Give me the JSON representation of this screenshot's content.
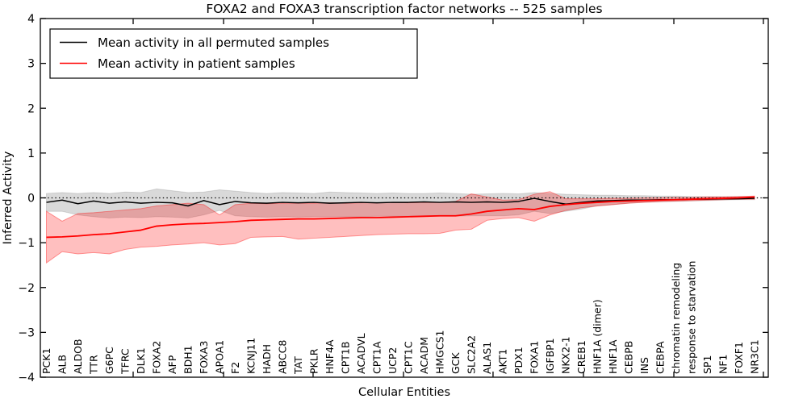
{
  "figure": {
    "title": "FOXA2 and FOXA3 transcription factor networks -- 525 samples",
    "xlabel": "Cellular Entities",
    "ylabel": "Inferred Activity"
  },
  "legend": {
    "items": [
      {
        "label": "Mean activity in all permuted samples",
        "color": "#000000"
      },
      {
        "label": "Mean activity in patient samples",
        "color": "#ff0000"
      }
    ],
    "position": "upper-left"
  },
  "chart_data": {
    "type": "line",
    "title": "FOXA2 and FOXA3 transcription factor networks -- 525 samples",
    "xlabel": "Cellular Entities",
    "ylabel": "Inferred Activity",
    "ylim": [
      -4,
      4
    ],
    "yticks": [
      4,
      3,
      2,
      1,
      0,
      -1,
      -2,
      -3,
      -4
    ],
    "zero_reference_line": "dotted",
    "grid": false,
    "legend_position": "upper-left",
    "categories": [
      "PCK1",
      "ALB",
      "ALDOB",
      "TTR",
      "G6PC",
      "TFRC",
      "DLK1",
      "FOXA2",
      "AFP",
      "BDH1",
      "FOXA3",
      "APOA1",
      "F2",
      "KCNJ11",
      "HADH",
      "ABCC8",
      "TAT",
      "PKLR",
      "HNF4A",
      "CPT1B",
      "ACADVL",
      "CPT1A",
      "UCP2",
      "CPT1C",
      "ACADM",
      "HMGCS1",
      "GCK",
      "SLC2A2",
      "ALAS1",
      "AKT1",
      "PDX1",
      "FOXA1",
      "IGFBP1",
      "NKX2-1",
      "CREB1",
      "HNF1A (dimer)",
      "HNF1A",
      "CEBPB",
      "INS",
      "CEBPA",
      "chromatin remodeling",
      "response to starvation",
      "SP1",
      "NF1",
      "FOXF1",
      "NR3C1"
    ],
    "series": [
      {
        "name": "Mean activity in all permuted samples",
        "color": "#000000",
        "band_color": "rgba(0,0,0,0.15)",
        "values": [
          -0.1,
          -0.05,
          -0.13,
          -0.07,
          -0.12,
          -0.09,
          -0.12,
          -0.1,
          -0.11,
          -0.18,
          -0.06,
          -0.15,
          -0.08,
          -0.11,
          -0.12,
          -0.1,
          -0.11,
          -0.1,
          -0.12,
          -0.11,
          -0.1,
          -0.11,
          -0.1,
          -0.1,
          -0.09,
          -0.1,
          -0.09,
          -0.1,
          -0.09,
          -0.1,
          -0.08,
          -0.01,
          -0.08,
          -0.14,
          -0.1,
          -0.07,
          -0.06,
          -0.05,
          -0.05,
          -0.04,
          -0.04,
          -0.03,
          -0.03,
          -0.02,
          -0.02,
          -0.01
        ],
        "band_upper": [
          0.1,
          0.12,
          0.1,
          0.12,
          0.1,
          0.13,
          0.12,
          0.2,
          0.16,
          0.12,
          0.13,
          0.18,
          0.15,
          0.12,
          0.1,
          0.12,
          0.11,
          0.1,
          0.13,
          0.12,
          0.11,
          0.1,
          0.11,
          0.1,
          0.1,
          0.11,
          0.1,
          0.08,
          0.09,
          0.1,
          0.09,
          0.12,
          0.1,
          0.08,
          0.07,
          0.06,
          0.06,
          0.05,
          0.05,
          0.04,
          0.04,
          0.03,
          0.03,
          0.03,
          0.03,
          0.02
        ],
        "band_lower": [
          -0.3,
          -0.3,
          -0.38,
          -0.42,
          -0.45,
          -0.43,
          -0.44,
          -0.42,
          -0.43,
          -0.45,
          -0.38,
          -0.28,
          -0.4,
          -0.42,
          -0.43,
          -0.42,
          -0.43,
          -0.42,
          -0.42,
          -0.42,
          -0.42,
          -0.41,
          -0.41,
          -0.41,
          -0.41,
          -0.41,
          -0.41,
          -0.4,
          -0.4,
          -0.4,
          -0.38,
          -0.3,
          -0.35,
          -0.3,
          -0.25,
          -0.18,
          -0.15,
          -0.12,
          -0.1,
          -0.09,
          -0.08,
          -0.07,
          -0.06,
          -0.05,
          -0.04,
          -0.04
        ]
      },
      {
        "name": "Mean activity in patient samples",
        "color": "#ff0000",
        "band_color": "rgba(255,0,0,0.25)",
        "values": [
          -0.88,
          -0.87,
          -0.85,
          -0.82,
          -0.8,
          -0.76,
          -0.72,
          -0.63,
          -0.6,
          -0.58,
          -0.57,
          -0.55,
          -0.53,
          -0.5,
          -0.49,
          -0.48,
          -0.47,
          -0.47,
          -0.46,
          -0.45,
          -0.44,
          -0.44,
          -0.43,
          -0.42,
          -0.41,
          -0.4,
          -0.4,
          -0.36,
          -0.3,
          -0.27,
          -0.24,
          -0.26,
          -0.19,
          -0.15,
          -0.12,
          -0.1,
          -0.08,
          -0.07,
          -0.06,
          -0.05,
          -0.04,
          -0.03,
          -0.02,
          -0.01,
          0.0,
          0.02
        ],
        "band_upper": [
          -0.3,
          -0.52,
          -0.35,
          -0.33,
          -0.3,
          -0.27,
          -0.24,
          -0.18,
          -0.15,
          -0.12,
          -0.15,
          -0.38,
          -0.15,
          -0.12,
          -0.13,
          -0.12,
          -0.12,
          -0.12,
          -0.11,
          -0.12,
          -0.11,
          -0.11,
          -0.1,
          -0.11,
          -0.1,
          -0.1,
          -0.08,
          0.09,
          0.02,
          -0.05,
          -0.04,
          0.08,
          0.14,
          -0.02,
          -0.02,
          -0.02,
          -0.01,
          -0.01,
          0.0,
          0.0,
          0.01,
          0.01,
          0.02,
          0.02,
          0.03,
          0.04
        ],
        "band_lower": [
          -1.45,
          -1.2,
          -1.25,
          -1.22,
          -1.25,
          -1.15,
          -1.1,
          -1.08,
          -1.05,
          -1.03,
          -1.0,
          -1.05,
          -1.02,
          -0.88,
          -0.87,
          -0.86,
          -0.92,
          -0.9,
          -0.88,
          -0.86,
          -0.84,
          -0.82,
          -0.81,
          -0.8,
          -0.8,
          -0.79,
          -0.72,
          -0.7,
          -0.5,
          -0.46,
          -0.44,
          -0.52,
          -0.38,
          -0.28,
          -0.22,
          -0.18,
          -0.15,
          -0.12,
          -0.1,
          -0.08,
          -0.07,
          -0.06,
          -0.05,
          -0.04,
          -0.03,
          -0.03
        ]
      }
    ]
  }
}
